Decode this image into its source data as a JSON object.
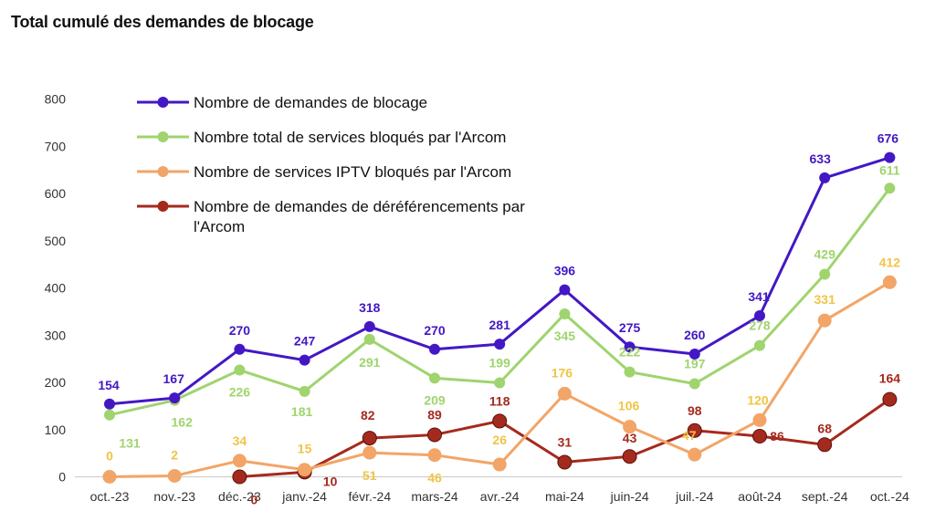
{
  "chart_data": {
    "type": "line",
    "title": "Total cumulé des demandes de blocage",
    "xlabel": "",
    "ylabel": "",
    "ylim": [
      0,
      800
    ],
    "yticks": [
      0,
      100,
      200,
      300,
      400,
      500,
      600,
      700,
      800
    ],
    "grid": false,
    "legend_position": "top-left",
    "categories": [
      "oct.-23",
      "nov.-23",
      "déc.-23",
      "janv.-24",
      "févr.-24",
      "mars-24",
      "avr.-24",
      "mai-24",
      "juin-24",
      "juil.-24",
      "août-24",
      "sept.-24",
      "oct.-24"
    ],
    "series": [
      {
        "name": "Nombre de demandes de blocage",
        "legend_lines": [
          "Nombre de demandes de blocage"
        ],
        "color": "#4318c4",
        "values": [
          154,
          167,
          270,
          247,
          318,
          270,
          281,
          396,
          275,
          260,
          341,
          633,
          676
        ],
        "labels": [
          "154",
          "167",
          "270",
          "247",
          "318",
          "270",
          "281",
          "396",
          "275",
          "260",
          "341",
          "633",
          "676"
        ]
      },
      {
        "name": "Nombre total de services bloqués par l'Arcom",
        "legend_lines": [
          "Nombre total de services bloqués par l'Arcom"
        ],
        "color": "#9fd46e",
        "values": [
          131,
          162,
          226,
          181,
          291,
          209,
          199,
          345,
          222,
          197,
          278,
          429,
          611
        ],
        "labels": [
          "131",
          "162",
          "226",
          "181",
          "291",
          "209",
          "199",
          "345",
          "222",
          "197",
          "278",
          "429",
          "611"
        ]
      },
      {
        "name": "Nombre de services IPTV bloqués par l'Arcom",
        "legend_lines": [
          "Nombre de services IPTV bloqués par l'Arcom"
        ],
        "color": "#f2a566",
        "label_color": "#f1c446",
        "values": [
          0,
          2,
          34,
          15,
          51,
          46,
          26,
          176,
          106,
          47,
          120,
          331,
          412
        ],
        "labels": [
          "0",
          "2",
          "34",
          "15",
          "51",
          "46",
          "26",
          "176",
          "106",
          "47",
          "120",
          "331",
          "412"
        ]
      },
      {
        "name": "Nombre de demandes de déréférencements par l'Arcom",
        "legend_lines": [
          "Nombre de demandes de déréférencements par",
          "l'Arcom"
        ],
        "color": "#a52a1e",
        "values": [
          null,
          null,
          0,
          10,
          82,
          89,
          118,
          31,
          43,
          98,
          86,
          68,
          164
        ],
        "labels": [
          "",
          "",
          "0",
          "10",
          "82",
          "89",
          "118",
          "31",
          "43",
          "98",
          "86",
          "68",
          "164"
        ]
      }
    ]
  }
}
